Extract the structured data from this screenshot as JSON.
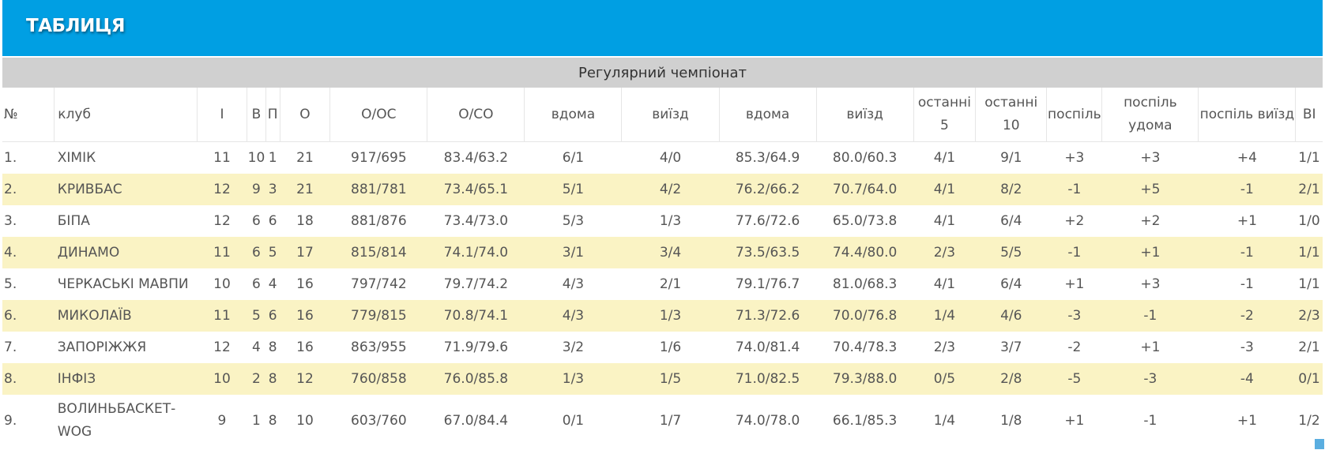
{
  "header": {
    "title": "ТАБЛИЦЯ"
  },
  "subheader": {
    "title": "Регулярний чемпіонат"
  },
  "table": {
    "columns": [
      "№",
      "клуб",
      "І",
      "В",
      "П",
      "О",
      "О/ОС",
      "О/СО",
      "вдома",
      "виїзд",
      "вдома",
      "виїзд",
      "останні 5",
      "останні 10",
      "поспіль",
      "поспіль удома",
      "поспіль виїзд",
      "ВІ"
    ],
    "rows": [
      [
        "1.",
        "ХІМІК",
        "11",
        "10",
        "1",
        "21",
        "917/695",
        "83.4/63.2",
        "6/1",
        "4/0",
        "85.3/64.9",
        "80.0/60.3",
        "4/1",
        "9/1",
        "+3",
        "+3",
        "+4",
        "1/1"
      ],
      [
        "2.",
        "КРИВБАС",
        "12",
        "9",
        "3",
        "21",
        "881/781",
        "73.4/65.1",
        "5/1",
        "4/2",
        "76.2/66.2",
        "70.7/64.0",
        "4/1",
        "8/2",
        "-1",
        "+5",
        "-1",
        "2/1"
      ],
      [
        "3.",
        "БІПА",
        "12",
        "6",
        "6",
        "18",
        "881/876",
        "73.4/73.0",
        "5/3",
        "1/3",
        "77.6/72.6",
        "65.0/73.8",
        "4/1",
        "6/4",
        "+2",
        "+2",
        "+1",
        "1/0"
      ],
      [
        "4.",
        "ДИНАМО",
        "11",
        "6",
        "5",
        "17",
        "815/814",
        "74.1/74.0",
        "3/1",
        "3/4",
        "73.5/63.5",
        "74.4/80.0",
        "2/3",
        "5/5",
        "-1",
        "+1",
        "-1",
        "1/1"
      ],
      [
        "5.",
        "ЧЕРКАСЬКІ МАВПИ",
        "10",
        "6",
        "4",
        "16",
        "797/742",
        "79.7/74.2",
        "4/3",
        "2/1",
        "79.1/76.7",
        "81.0/68.3",
        "4/1",
        "6/4",
        "+1",
        "+3",
        "-1",
        "1/1"
      ],
      [
        "6.",
        "МИКОЛАЇВ",
        "11",
        "5",
        "6",
        "16",
        "779/815",
        "70.8/74.1",
        "4/3",
        "1/3",
        "71.3/72.6",
        "70.0/76.8",
        "1/4",
        "4/6",
        "-3",
        "-1",
        "-2",
        "2/3"
      ],
      [
        "7.",
        "ЗАПОРІЖЖЯ",
        "12",
        "4",
        "8",
        "16",
        "863/955",
        "71.9/79.6",
        "3/2",
        "1/6",
        "74.0/81.4",
        "70.4/78.3",
        "2/3",
        "3/7",
        "-2",
        "+1",
        "-3",
        "2/1"
      ],
      [
        "8.",
        "ІНФІЗ",
        "10",
        "2",
        "8",
        "12",
        "760/858",
        "76.0/85.8",
        "1/3",
        "1/5",
        "71.0/82.5",
        "79.3/88.0",
        "0/5",
        "2/8",
        "-5",
        "-3",
        "-4",
        "0/1"
      ],
      [
        "9.",
        "ВОЛИНЬБАСКЕТ-WOG",
        "9",
        "1",
        "8",
        "10",
        "603/760",
        "67.0/84.4",
        "0/1",
        "1/7",
        "74.0/78.0",
        "66.1/85.3",
        "1/4",
        "1/8",
        "+1",
        "-1",
        "+1",
        "1/2"
      ]
    ]
  }
}
